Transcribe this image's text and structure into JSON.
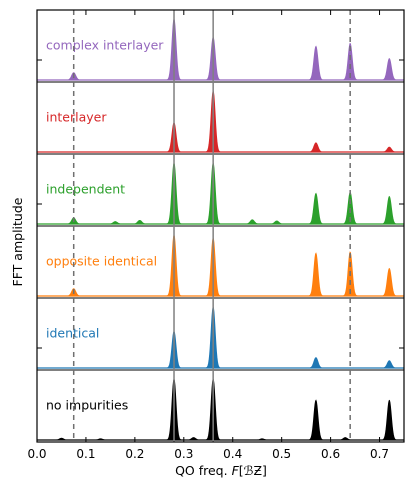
{
  "chart_data": {
    "type": "area",
    "title": "",
    "xlabel_prefix": "QO freq. ",
    "xlabel_var": "F",
    "xlabel_unit": "[ℬƵ]",
    "ylabel": "FFT amplitude",
    "xlim": [
      0.0,
      0.75
    ],
    "xticks": [
      0.0,
      0.1,
      0.2,
      0.3,
      0.4,
      0.5,
      0.6,
      0.7
    ],
    "xtick_labels": [
      "0.0",
      "0.1",
      "0.2",
      "0.3",
      "0.4",
      "0.5",
      "0.6",
      "0.7"
    ],
    "grid": false,
    "solid_reference_lines_x": [
      0.28,
      0.36
    ],
    "dashed_reference_lines_x": [
      0.075,
      0.64
    ],
    "panels": [
      {
        "name": "complex interlayer",
        "color": "#9467bd",
        "baseline_tick": true,
        "peaks": [
          {
            "x": 0.075,
            "height": 0.12
          },
          {
            "x": 0.28,
            "height": 1.0
          },
          {
            "x": 0.36,
            "height": 0.7
          },
          {
            "x": 0.57,
            "height": 0.55
          },
          {
            "x": 0.64,
            "height": 0.6
          },
          {
            "x": 0.72,
            "height": 0.35
          }
        ]
      },
      {
        "name": "interlayer",
        "color": "#d62728",
        "baseline_tick": false,
        "peaks": [
          {
            "x": 0.28,
            "height": 0.48
          },
          {
            "x": 0.36,
            "height": 1.0
          },
          {
            "x": 0.57,
            "height": 0.15
          },
          {
            "x": 0.72,
            "height": 0.08
          }
        ]
      },
      {
        "name": "independent",
        "color": "#2ca02c",
        "baseline_tick": true,
        "peaks": [
          {
            "x": 0.075,
            "height": 0.1
          },
          {
            "x": 0.16,
            "height": 0.04
          },
          {
            "x": 0.21,
            "height": 0.06
          },
          {
            "x": 0.28,
            "height": 1.0
          },
          {
            "x": 0.36,
            "height": 1.0
          },
          {
            "x": 0.44,
            "height": 0.07
          },
          {
            "x": 0.49,
            "height": 0.05
          },
          {
            "x": 0.57,
            "height": 0.5
          },
          {
            "x": 0.64,
            "height": 0.52
          },
          {
            "x": 0.72,
            "height": 0.45
          }
        ]
      },
      {
        "name": "opposite identical",
        "color": "#ff7f0e",
        "baseline_tick": false,
        "peaks": [
          {
            "x": 0.075,
            "height": 0.12
          },
          {
            "x": 0.28,
            "height": 1.0
          },
          {
            "x": 0.36,
            "height": 0.95
          },
          {
            "x": 0.57,
            "height": 0.7
          },
          {
            "x": 0.64,
            "height": 0.72
          },
          {
            "x": 0.72,
            "height": 0.45
          }
        ]
      },
      {
        "name": "identical",
        "color": "#1f77b4",
        "baseline_tick": true,
        "peaks": [
          {
            "x": 0.28,
            "height": 0.6
          },
          {
            "x": 0.36,
            "height": 1.0
          },
          {
            "x": 0.57,
            "height": 0.17
          },
          {
            "x": 0.72,
            "height": 0.12
          }
        ]
      },
      {
        "name": "no impurities",
        "color": "#000000",
        "baseline_tick": false,
        "peaks": [
          {
            "x": 0.05,
            "height": 0.03
          },
          {
            "x": 0.13,
            "height": 0.02
          },
          {
            "x": 0.28,
            "height": 1.0
          },
          {
            "x": 0.32,
            "height": 0.04
          },
          {
            "x": 0.36,
            "height": 1.0
          },
          {
            "x": 0.46,
            "height": 0.02
          },
          {
            "x": 0.57,
            "height": 0.65
          },
          {
            "x": 0.63,
            "height": 0.04
          },
          {
            "x": 0.72,
            "height": 0.65
          }
        ]
      }
    ]
  }
}
